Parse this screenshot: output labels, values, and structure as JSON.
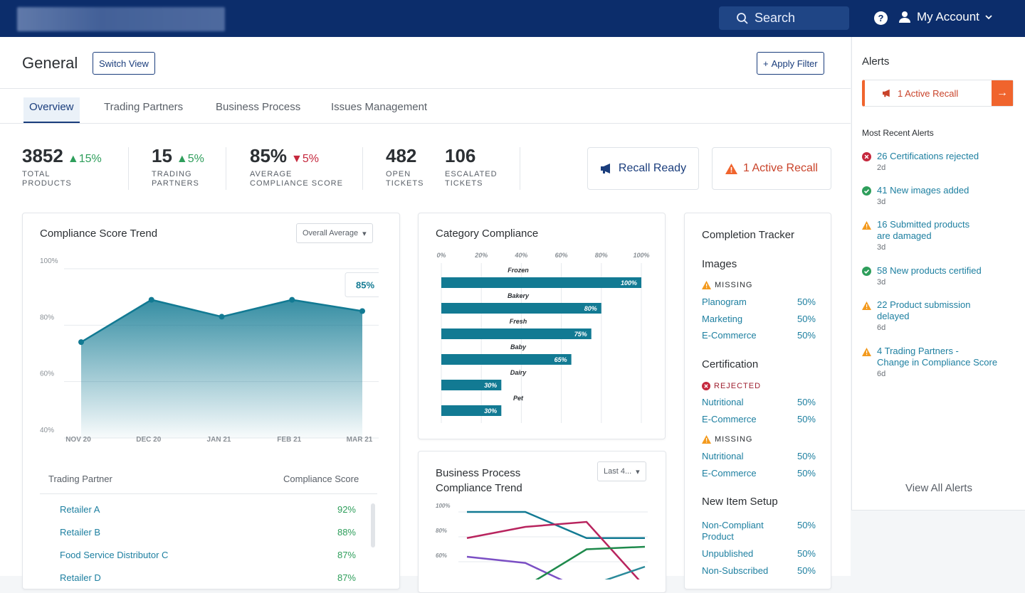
{
  "topbar": {
    "search_label": "Search",
    "account_label": "My Account",
    "help_label": "?"
  },
  "header": {
    "title": "General",
    "switch_view": "Switch View",
    "apply_filter": "Apply Filter"
  },
  "tabs": [
    "Overview",
    "Trading Partners",
    "Business Process",
    "Issues Management"
  ],
  "kpis": [
    {
      "value": "3852",
      "change": "15%",
      "dir": "up",
      "label1": "TOTAL",
      "label2": "PRODUCTS"
    },
    {
      "value": "15",
      "change": "5%",
      "dir": "up",
      "label1": "TRADING",
      "label2": "PARTNERS"
    },
    {
      "value": "85%",
      "change": "5%",
      "dir": "down",
      "label1": "AVERAGE",
      "label2": "COMPLIANCE SCORE"
    },
    {
      "value": "482",
      "label1": "OPEN",
      "label2": "TICKETS"
    },
    {
      "value": "106",
      "label1": "ESCALATED",
      "label2": "TICKETS"
    }
  ],
  "actions": {
    "recall_ready": "Recall Ready",
    "active_recall": "1 Active Recall"
  },
  "colors": {
    "navy": "#0c2d6b",
    "teal": "#127a93",
    "orange": "#f0642d",
    "green": "#2e9e5b",
    "red": "#c5283d"
  },
  "trend": {
    "title": "Compliance Score Trend",
    "dropdown": "Overall Average",
    "tooltip": "85%",
    "chart_data": {
      "type": "area",
      "title": "Compliance Score Trend",
      "categories": [
        "NOV 20",
        "DEC 20",
        "JAN 21",
        "FEB 21",
        "MAR  21"
      ],
      "values": [
        74,
        89,
        83,
        89,
        85
      ],
      "ylim": [
        40,
        100
      ],
      "yticks": [
        "100%",
        "80%",
        "60%",
        "40%"
      ]
    }
  },
  "partners": {
    "col1": "Trading Partner",
    "col2": "Compliance Score",
    "rows": [
      {
        "name": "Retailer A",
        "score": "92%"
      },
      {
        "name": "Retailer B",
        "score": "88%"
      },
      {
        "name": "Food Service Distributor C",
        "score": "87%"
      },
      {
        "name": "Retailer D",
        "score": "87%"
      }
    ]
  },
  "category": {
    "title": "Category Compliance",
    "chart_data": {
      "type": "bar",
      "title": "Category Compliance",
      "categories": [
        "Frozen",
        "Bakery",
        "Fresh",
        "Baby",
        "Dairy",
        "Pet"
      ],
      "values": [
        100,
        80,
        75,
        65,
        30,
        30
      ],
      "labels": [
        "100%",
        "80%",
        "75%",
        "65%",
        "30%",
        "30%"
      ],
      "xticks": [
        "0%",
        "20%",
        "40%",
        "60%",
        "80%",
        "100%"
      ],
      "xlim": [
        0,
        100
      ]
    }
  },
  "bp": {
    "title1": "Business Process",
    "title2": "Compliance Trend",
    "dropdown": "Last 4...",
    "chart_data": {
      "type": "line",
      "title": "Business Process Compliance Trend",
      "yticks": [
        "100%",
        "80%",
        "60%"
      ],
      "ylim": [
        40,
        100
      ],
      "series": [
        {
          "name": "teal",
          "values": [
            100,
            100,
            79,
            79
          ]
        },
        {
          "name": "magenta",
          "values": [
            79,
            88,
            92,
            40
          ]
        },
        {
          "name": "purple",
          "values": [
            64,
            59,
            36,
            36
          ]
        },
        {
          "name": "green",
          "values": [
            40,
            40,
            70,
            72
          ]
        },
        {
          "name": "teal2",
          "values": [
            40,
            40,
            40,
            56
          ]
        }
      ]
    }
  },
  "tracker": {
    "title": "Completion Tracker",
    "images": {
      "heading": "Images",
      "status": "MISSING",
      "rows": [
        {
          "name": "Planogram",
          "value": "50%"
        },
        {
          "name": "Marketing",
          "value": "50%"
        },
        {
          "name": "E-Commerce",
          "value": "50%"
        }
      ]
    },
    "certification": {
      "heading": "Certification",
      "status1": "REJECTED",
      "rows1": [
        {
          "name": "Nutritional",
          "value": "50%"
        },
        {
          "name": "E-Commerce",
          "value": "50%"
        }
      ],
      "status2": "MISSING",
      "rows2": [
        {
          "name": "Nutritional",
          "value": "50%"
        },
        {
          "name": "E-Commerce",
          "value": "50%"
        }
      ]
    },
    "newitem": {
      "heading": "New Item Setup",
      "rows": [
        {
          "name1": "Non-Compliant",
          "name2": "Product",
          "value": "50%"
        },
        {
          "name": "Unpublished",
          "value": "50%"
        },
        {
          "name": "Non-Subscribed",
          "value": "50%"
        }
      ]
    }
  },
  "alerts": {
    "title": "Alerts",
    "recall": "1 Active Recall",
    "recent": "Most Recent Alerts",
    "items": [
      {
        "type": "error",
        "l1": "26 Certifications rejected",
        "ago": "2d"
      },
      {
        "type": "success",
        "l1": "41 New images added",
        "ago": "3d"
      },
      {
        "type": "warn",
        "l1": "16 Submitted products",
        "l2": "are damaged",
        "ago": "3d"
      },
      {
        "type": "success",
        "l1": "58 New products certified",
        "ago": "3d"
      },
      {
        "type": "warn",
        "l1": "22 Product submission",
        "l2": "delayed",
        "ago": "6d"
      },
      {
        "type": "warn",
        "l1": "4 Trading Partners -",
        "l2": "Change in Compliance Score",
        "ago": "6d"
      }
    ],
    "view_all": "View All Alerts"
  }
}
